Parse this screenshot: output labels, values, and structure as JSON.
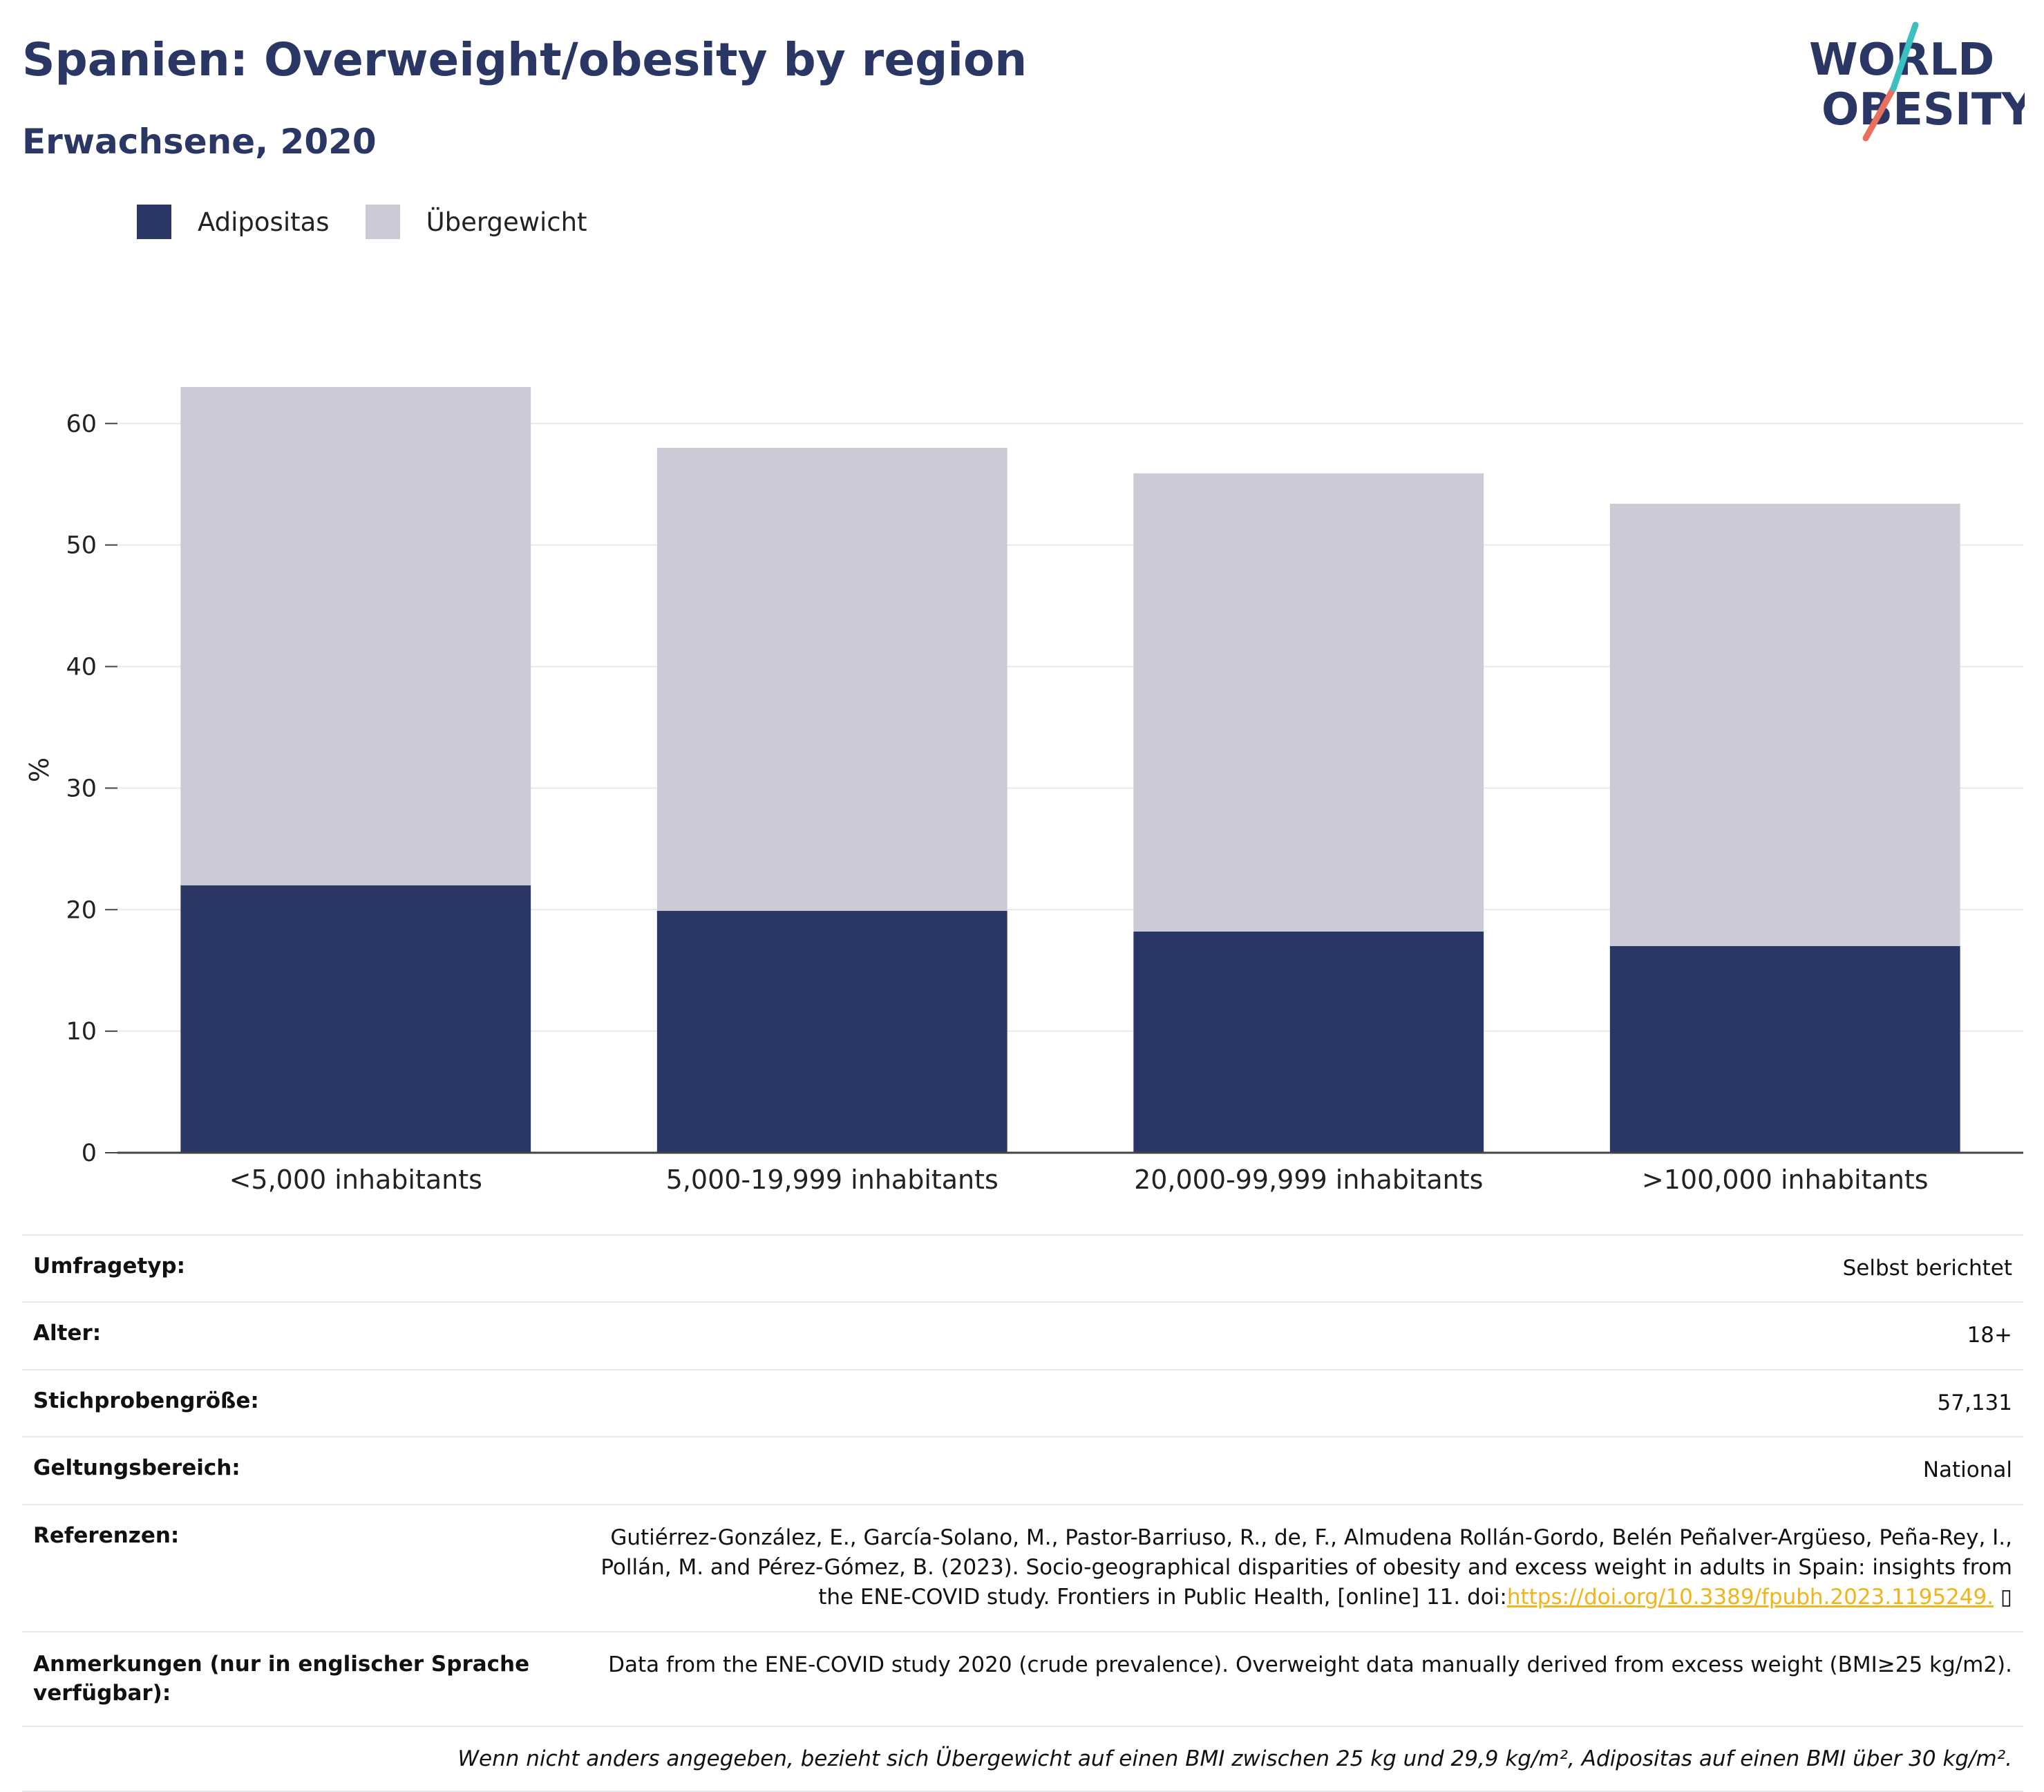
{
  "header": {
    "title": "Spanien: Overweight/obesity by region",
    "subtitle": "Erwachsene, 2020"
  },
  "logo": {
    "line1": "WORLD",
    "line2": "OBESITY"
  },
  "colors": {
    "adipositas": "#2a3663",
    "uebergewicht": "#cacbd7",
    "accent_teal": "#3bbfbf",
    "accent_red": "#e8705f",
    "link": "#f0b41c"
  },
  "chart_data": {
    "type": "bar",
    "stacked": true,
    "categories": [
      "<5,000 inhabitants",
      "5,000-19,999 inhabitants",
      "20,000-99,999 inhabitants",
      ">100,000 inhabitants"
    ],
    "series": [
      {
        "name": "Adipositas",
        "values": [
          22.0,
          19.9,
          18.2,
          17.0
        ]
      },
      {
        "name": "Übergewicht",
        "values": [
          41.0,
          38.1,
          37.7,
          36.4
        ]
      }
    ],
    "ylabel": "%",
    "ylim": [
      0,
      63
    ],
    "yticks": [
      "0",
      "10",
      "20",
      "30",
      "40",
      "50",
      "60"
    ],
    "ytick_values": [
      0,
      10,
      20,
      30,
      40,
      50,
      60
    ],
    "grid": true,
    "legend_position": "top-left"
  },
  "meta": {
    "survey_label": "Umfragetyp:",
    "survey_value": "Selbst berichtet",
    "age_label": "Alter:",
    "age_value": "18+",
    "sample_label": "Stichprobengröße:",
    "sample_value": "57,131",
    "scope_label": "Geltungsbereich:",
    "scope_value": "National",
    "ref_label": "Referenzen:",
    "ref_text": "Gutiérrez-González, E., García-Solano, M., Pastor-Barriuso, R., de, F., Almudena Rollán-Gordo, Belén Peñalver-Argüeso, Peña-Rey, I., Pollán, M. and Pérez-Gómez, B. (2023). Socio-geographical disparities of obesity and excess weight in adults in Spain: insights from the ENE-COVID study. Frontiers in Public Health, [online] 11. doi:",
    "ref_link": "https://doi.org/10.3389/fpubh.2023.1195249.",
    "ref_tail": " ▯",
    "notes_label": "Anmerkungen (nur in englischer Sprache verfügbar):",
    "notes_value": "Data from the ENE-COVID study 2020 (crude prevalence). Overweight data manually derived from excess weight (BMI≥25 kg/m2).",
    "footnote": "Wenn nicht anders angegeben, bezieht sich Übergewicht auf einen BMI zwischen 25 kg und 29,9 kg/m², Adipositas auf einen BMI über 30 kg/m²."
  }
}
